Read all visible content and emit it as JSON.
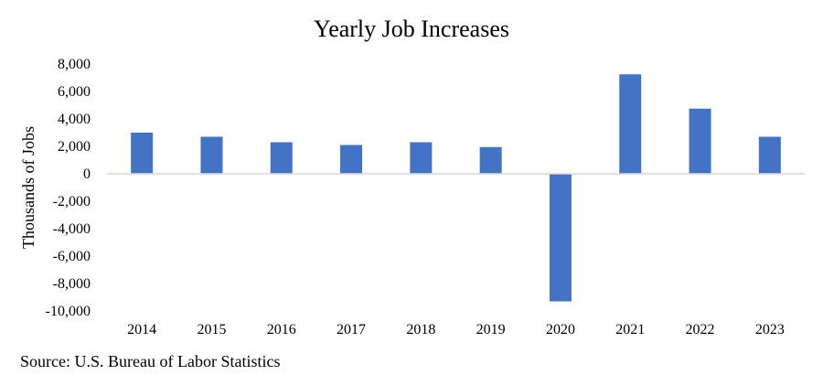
{
  "chart_data": {
    "type": "bar",
    "title": "Yearly Job Increases",
    "xlabel": "",
    "ylabel": "Thousands of Jobs",
    "categories": [
      "2014",
      "2015",
      "2016",
      "2017",
      "2018",
      "2019",
      "2020",
      "2021",
      "2022",
      "2023"
    ],
    "values": [
      3000,
      2700,
      2300,
      2100,
      2300,
      1950,
      -9300,
      7250,
      4750,
      2700
    ],
    "ylim": [
      -10000,
      8000
    ],
    "yticks": [
      8000,
      6000,
      4000,
      2000,
      0,
      -2000,
      -4000,
      -6000,
      -8000,
      -10000
    ],
    "ytick_labels": [
      "8,000",
      "6,000",
      "4,000",
      "2,000",
      "0",
      "-2,000",
      "-4,000",
      "-6,000",
      "-8,000",
      "-10,000"
    ],
    "bar_color": "#4472C4",
    "axis_color": "#D9D9D9",
    "grid": false,
    "legend": "none"
  },
  "footer": {
    "source": "Source: U.S. Bureau of Labor Statistics"
  }
}
